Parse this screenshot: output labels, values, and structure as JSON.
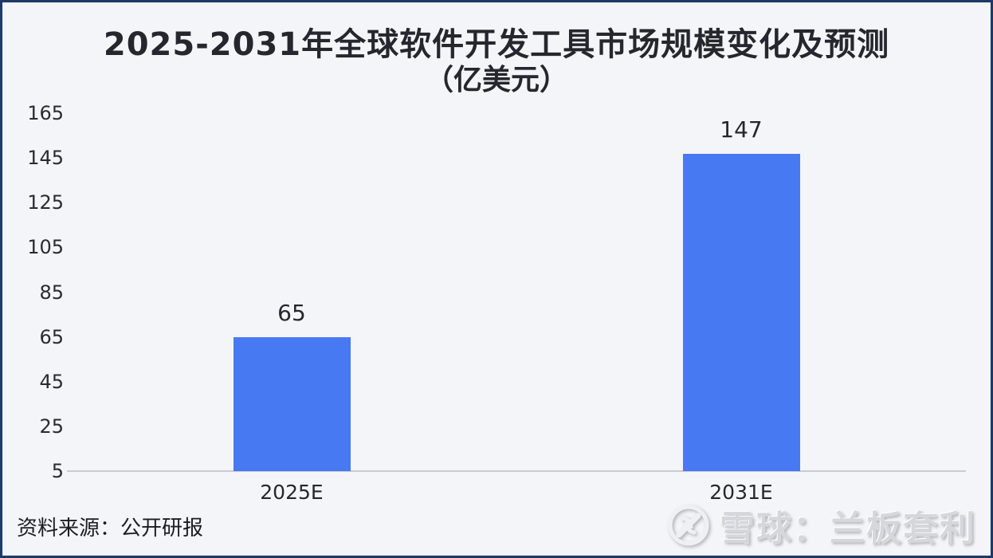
{
  "title": {
    "line1": "2025-2031年全球软件开发工具市场规模变化及预测",
    "line2": "（亿美元）"
  },
  "chart_data": {
    "type": "bar",
    "title": "2025-2031年全球软件开发工具市场规模变化及预测（亿美元）",
    "categories": [
      "2025E",
      "2031E"
    ],
    "values": [
      65,
      147
    ],
    "data_labels": [
      "65",
      "147"
    ],
    "xlabel": "",
    "ylabel": "",
    "ylim": [
      5,
      165
    ],
    "yticks": [
      165,
      145,
      125,
      105,
      85,
      65,
      45,
      25,
      5
    ],
    "grid": false,
    "legend": "none",
    "bar_color": "#4679f2"
  },
  "footer": {
    "source_label": "资料来源：公开研报",
    "watermark_text": "雪球：兰板套利"
  },
  "icons": {
    "logo": "xueqiu-snowball-logo"
  },
  "colors": {
    "bar": "#4679f2",
    "background": "#f4f5f8",
    "border": "#1d3a66",
    "text": "#26262e",
    "axis_line": "#c9cbd2",
    "watermark": "#d5d7db"
  }
}
